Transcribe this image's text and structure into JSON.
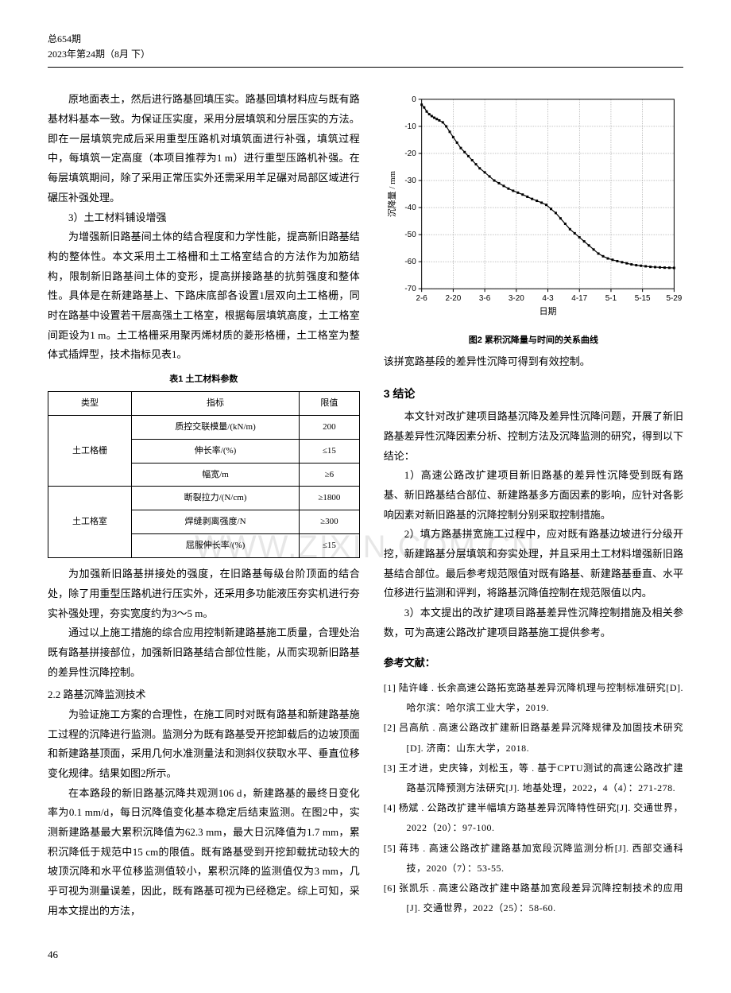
{
  "header": {
    "issue_total": "总654期",
    "issue_line": "2023年第24期（8月 下）"
  },
  "left": {
    "p1": "原地面表土，然后进行路基回填压实。路基回填材料应与既有路基材料基本一致。为保证压实度，采用分层填筑和分层压实的方法。即在一层填筑完成后采用重型压路机对填筑面进行补强，填筑过程中，每填筑一定高度（本项目推荐为1 m）进行重型压路机补强。在每层填筑期间，除了采用正常压实外还需采用羊足碾对局部区域进行碾压补强处理。",
    "h3_1": "3）土工材料铺设增强",
    "p2": "为增强新旧路基间土体的结合程度和力学性能，提高新旧路基结构的整体性。本文采用土工格栅和土工格室结合的方法作为加筋结构，限制新旧路基间土体的变形，提高拼接路基的抗剪强度和整体性。具体是在新建路基上、下路床底部各设置1层双向土工格栅，同时在路基中设置若干层高强土工格室，根据每层填筑高度，土工格室间距设为1 m。土工格栅采用聚丙烯材质的菱形格栅，土工格室为整体式插焊型，技术指标见表1。",
    "table1": {
      "caption": "表1  土工材料参数",
      "headers": [
        "类型",
        "指标",
        "限值"
      ],
      "groups": [
        {
          "type": "土工格栅",
          "rows": [
            [
              "质控交联模量/(kN/m)",
              "200"
            ],
            [
              "伸长率/(%)",
              "≤15"
            ],
            [
              "幅宽/m",
              "≥6"
            ]
          ]
        },
        {
          "type": "土工格室",
          "rows": [
            [
              "断裂拉力/(N/cm)",
              "≥1800"
            ],
            [
              "焊缝剥离强度/N",
              "≥300"
            ],
            [
              "屈服伸长率/(%)",
              "≤15"
            ]
          ]
        }
      ]
    },
    "p3": "为加强新旧路基拼接处的强度，在旧路基每级台阶顶面的结合处，除了用重型压路机进行压实外，还采用多功能液压夯实机进行夯实补强处理，夯实宽度约为3～5 m。",
    "p4": "通过以上施工措施的综合应用控制新建路基施工质量，合理处治既有路基拼接部位，加强新旧路基结合部位性能，从而实现新旧路基的差异性沉降控制。",
    "subsec": "2.2  路基沉降监测技术",
    "p5": "为验证施工方案的合理性，在施工同时对既有路基和新建路基施工过程的沉降进行监测。监测分为既有路基受开挖卸载后的边坡顶面和新建路基顶面，采用几何水准测量法和测斜仪获取水平、垂直位移变化规律。结果如图2所示。",
    "p6": "在本路段的新旧路基沉降共观测106 d，新建路基的最终日变化率为0.1 mm/d，每日沉降值变化基本稳定后结束监测。在图2中，实测新建路基最大累积沉降值为62.3 mm，最大日沉降值为1.7 mm，累积沉降低于规范中15 cm的限值。既有路基受到开挖卸载扰动较大的坡顶沉降和水平位移监测值较小，累积沉降的监测值仅为3 mm，几乎可视为测量误差，因此，既有路基可视为已经稳定。综上可知，采用本文提出的方法，"
  },
  "right": {
    "chart": {
      "type": "line",
      "x_label": "日期",
      "y_label": "沉降量 / mm",
      "x_ticks": [
        "2-6",
        "2-20",
        "3-6",
        "3-20",
        "4-3",
        "4-17",
        "5-1",
        "5-15",
        "5-29"
      ],
      "y_ticks": [
        0,
        -10,
        -20,
        -30,
        -40,
        -50,
        -60,
        -70
      ],
      "ylim": [
        -70,
        0
      ],
      "line_color": "#000000",
      "marker": "square",
      "marker_size": 3,
      "background_color": "#ffffff",
      "grid_color": "#666666",
      "data": [
        {
          "x": 0.0,
          "y": -2
        },
        {
          "x": 0.08,
          "y": -3
        },
        {
          "x": 0.16,
          "y": -4.5
        },
        {
          "x": 0.24,
          "y": -5.5
        },
        {
          "x": 0.32,
          "y": -6.2
        },
        {
          "x": 0.4,
          "y": -6.8
        },
        {
          "x": 0.48,
          "y": -7.3
        },
        {
          "x": 0.56,
          "y": -7.8
        },
        {
          "x": 0.67,
          "y": -8.5
        },
        {
          "x": 0.78,
          "y": -10
        },
        {
          "x": 0.89,
          "y": -12
        },
        {
          "x": 1.0,
          "y": -14
        },
        {
          "x": 1.12,
          "y": -16
        },
        {
          "x": 1.24,
          "y": -18
        },
        {
          "x": 1.36,
          "y": -19.5
        },
        {
          "x": 1.48,
          "y": -21
        },
        {
          "x": 1.6,
          "y": -22.5
        },
        {
          "x": 1.72,
          "y": -24
        },
        {
          "x": 1.84,
          "y": -25.5
        },
        {
          "x": 2.0,
          "y": -27
        },
        {
          "x": 2.15,
          "y": -28.5
        },
        {
          "x": 2.3,
          "y": -30
        },
        {
          "x": 2.45,
          "y": -31
        },
        {
          "x": 2.6,
          "y": -32
        },
        {
          "x": 2.75,
          "y": -33
        },
        {
          "x": 2.9,
          "y": -33.8
        },
        {
          "x": 3.05,
          "y": -34.5
        },
        {
          "x": 3.2,
          "y": -35.2
        },
        {
          "x": 3.35,
          "y": -36
        },
        {
          "x": 3.5,
          "y": -36.8
        },
        {
          "x": 3.65,
          "y": -37.5
        },
        {
          "x": 3.8,
          "y": -38.2
        },
        {
          "x": 3.95,
          "y": -39
        },
        {
          "x": 4.1,
          "y": -40.5
        },
        {
          "x": 4.25,
          "y": -42
        },
        {
          "x": 4.4,
          "y": -44
        },
        {
          "x": 4.55,
          "y": -46
        },
        {
          "x": 4.7,
          "y": -48
        },
        {
          "x": 4.85,
          "y": -49.5
        },
        {
          "x": 5.0,
          "y": -51
        },
        {
          "x": 5.15,
          "y": -52.5
        },
        {
          "x": 5.3,
          "y": -54
        },
        {
          "x": 5.45,
          "y": -55.5
        },
        {
          "x": 5.6,
          "y": -57
        },
        {
          "x": 5.75,
          "y": -58
        },
        {
          "x": 5.9,
          "y": -58.8
        },
        {
          "x": 6.05,
          "y": -59.3
        },
        {
          "x": 6.2,
          "y": -59.8
        },
        {
          "x": 6.35,
          "y": -60.2
        },
        {
          "x": 6.5,
          "y": -60.6
        },
        {
          "x": 6.65,
          "y": -61
        },
        {
          "x": 6.8,
          "y": -61.3
        },
        {
          "x": 6.95,
          "y": -61.5
        },
        {
          "x": 7.1,
          "y": -61.7
        },
        {
          "x": 7.25,
          "y": -61.9
        },
        {
          "x": 7.4,
          "y": -62
        },
        {
          "x": 7.55,
          "y": -62.1
        },
        {
          "x": 7.7,
          "y": -62.2
        },
        {
          "x": 7.85,
          "y": -62.25
        },
        {
          "x": 8.0,
          "y": -62.3
        }
      ]
    },
    "fig_caption": "图2  累积沉降量与时间的关系曲线",
    "p_after_fig": "该拼宽路基段的差异性沉降可得到有效控制。",
    "sec3_title": "3  结论",
    "p_c1": "本文针对改扩建项目路基沉降及差异性沉降问题，开展了新旧路基差异性沉降因素分析、控制方法及沉降监测的研究，得到以下结论：",
    "p_c2": "1）高速公路改扩建项目新旧路基的差异性沉降受到既有路基、新旧路基结合部位、新建路基多方面因素的影响，应针对各影响因素对新旧路基的沉降控制分别采取控制措施。",
    "p_c3": "2）填方路基拼宽施工过程中，应对既有路基边坡进行分级开挖，新建路基分层填筑和夯实处理，并且采用土工材料增强新旧路基结合部位。最后参考规范限值对既有路基、新建路基垂直、水平位移进行监测和评判，将路基沉降值控制在规范限值以内。",
    "p_c4": "3）本文提出的改扩建项目路基差异性沉降控制措施及相关参数，可为高速公路改扩建项目路基施工提供参考。",
    "refs_title": "参考文献：",
    "refs": [
      "[1]  陆许峰 . 长余高速公路拓宽路基差异沉降机理与控制标准研究[D]. 哈尔滨：哈尔滨工业大学，2019.",
      "[2]  吕高航 . 高速公路改扩建新旧路基差异沉降规律及加固技术研究[D]. 济南：山东大学，2018.",
      "[3]  王才进，史庆锋，刘松玉，等 . 基于CPTU测试的高速公路改扩建路基沉降预测方法研究[J]. 地基处理，2022，4（4）：271-278.",
      "[4]  杨斌 . 公路改扩建半幅填方路基差异沉降特性研究[J]. 交通世界，2022（20）：97-100.",
      "[5]  蒋玮 . 高速公路改扩建路基加宽段沉降监测分析[J]. 西部交通科技，2020（7）：53-55.",
      "[6]  张凯乐 . 高速公路改扩建中路基加宽段差异沉降控制技术的应用[J]. 交通世界，2022（25）：58-60."
    ]
  },
  "page_num": "46",
  "watermark": "WWW.ZIXIN.COM.CN"
}
